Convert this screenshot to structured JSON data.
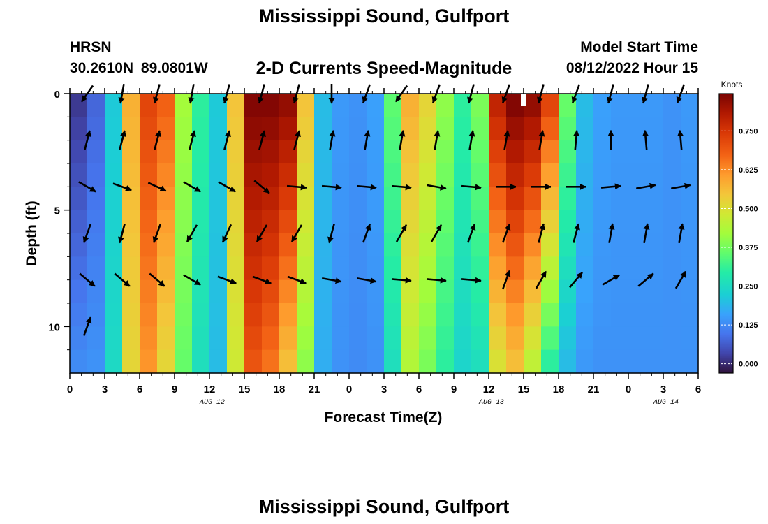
{
  "header": {
    "title": "Mississippi Sound, Gulfport",
    "station": "HRSN",
    "coords": "30.2610N  89.0801W",
    "subtitle": "2-D Currents Speed-Magnitude",
    "model_label": "Model Start Time",
    "model_start": "08/12/2022 Hour 15",
    "footer_title": "Mississippi Sound, Gulfport"
  },
  "chart_data": {
    "type": "heatmap",
    "xlabel": "Forecast Time(Z)",
    "ylabel": "Depth (ft)",
    "x_ticks": [
      "0",
      "3",
      "6",
      "9",
      "12",
      "15",
      "18",
      "21",
      "0",
      "3",
      "6",
      "9",
      "12",
      "15",
      "18",
      "21",
      "0",
      "3",
      "6"
    ],
    "x_range_hours": [
      0,
      54
    ],
    "y_ticks": [
      "0",
      "5",
      "10"
    ],
    "ylim_ft": [
      0,
      12
    ],
    "date_labels": [
      {
        "label": "AUG 12",
        "hour": 12
      },
      {
        "label": "AUG 13",
        "hour": 36
      },
      {
        "label": "AUG 14",
        "hour": 51
      }
    ],
    "colorbar": {
      "title": "Knots",
      "ticks": [
        "0.000",
        "0.125",
        "0.250",
        "0.375",
        "0.500",
        "0.625",
        "0.750"
      ],
      "range": [
        -0.03,
        0.87
      ]
    },
    "columns_hours": [
      0,
      1.5,
      3,
      4.5,
      6,
      7.5,
      9,
      10.5,
      12,
      13.5,
      15,
      16.5,
      18,
      19.5,
      21,
      22.5,
      24,
      25.5,
      27,
      28.5,
      30,
      31.5,
      33,
      34.5,
      36,
      37.5,
      39,
      40.5,
      42,
      43.5,
      45,
      46.5,
      48,
      49.5,
      51,
      52.5
    ],
    "speed_top_knots": [
      0.02,
      0.08,
      0.22,
      0.58,
      0.72,
      0.68,
      0.42,
      0.3,
      0.22,
      0.55,
      0.86,
      0.86,
      0.84,
      0.55,
      0.2,
      0.15,
      0.14,
      0.16,
      0.35,
      0.58,
      0.52,
      0.4,
      0.3,
      0.38,
      0.78,
      0.86,
      0.84,
      0.72,
      0.36,
      0.2,
      0.16,
      0.15,
      0.15,
      0.15,
      0.14,
      0.15
    ],
    "speed_bottom_knots": [
      0.13,
      0.14,
      0.25,
      0.52,
      0.62,
      0.52,
      0.36,
      0.26,
      0.2,
      0.48,
      0.7,
      0.66,
      0.56,
      0.4,
      0.18,
      0.14,
      0.13,
      0.14,
      0.26,
      0.44,
      0.38,
      0.3,
      0.24,
      0.26,
      0.5,
      0.56,
      0.46,
      0.3,
      0.2,
      0.15,
      0.14,
      0.14,
      0.14,
      0.14,
      0.14,
      0.14
    ],
    "vector_hours": [
      1.5,
      4.5,
      7.5,
      10.5,
      13.5,
      16.5,
      19.5,
      22.5,
      25.5,
      28.5,
      31.5,
      34.5,
      37.5,
      40.5,
      43.5,
      46.5,
      49.5,
      52.5
    ],
    "vector_depths_ft": [
      0,
      2,
      4,
      6,
      8,
      10,
      12
    ],
    "vector_direction_deg": [
      215,
      190,
      195,
      190,
      195,
      195,
      195,
      180,
      200,
      215,
      200,
      195,
      200,
      195,
      200,
      195,
      195,
      200,
      15,
      15,
      15,
      15,
      15,
      15,
      15,
      10,
      10,
      10,
      10,
      10,
      10,
      10,
      5,
      0,
      355,
      355,
      120,
      110,
      115,
      120,
      120,
      130,
      95,
      95,
      95,
      95,
      100,
      95,
      90,
      90,
      90,
      85,
      80,
      80,
      200,
      195,
      200,
      210,
      205,
      210,
      210,
      195,
      20,
      30,
      30,
      20,
      20,
      15,
      15,
      10,
      10,
      10,
      130,
      130,
      130,
      120,
      110,
      110,
      110,
      100,
      100,
      95,
      95,
      95,
      20,
      30,
      40,
      60,
      50,
      30,
      20
    ]
  }
}
